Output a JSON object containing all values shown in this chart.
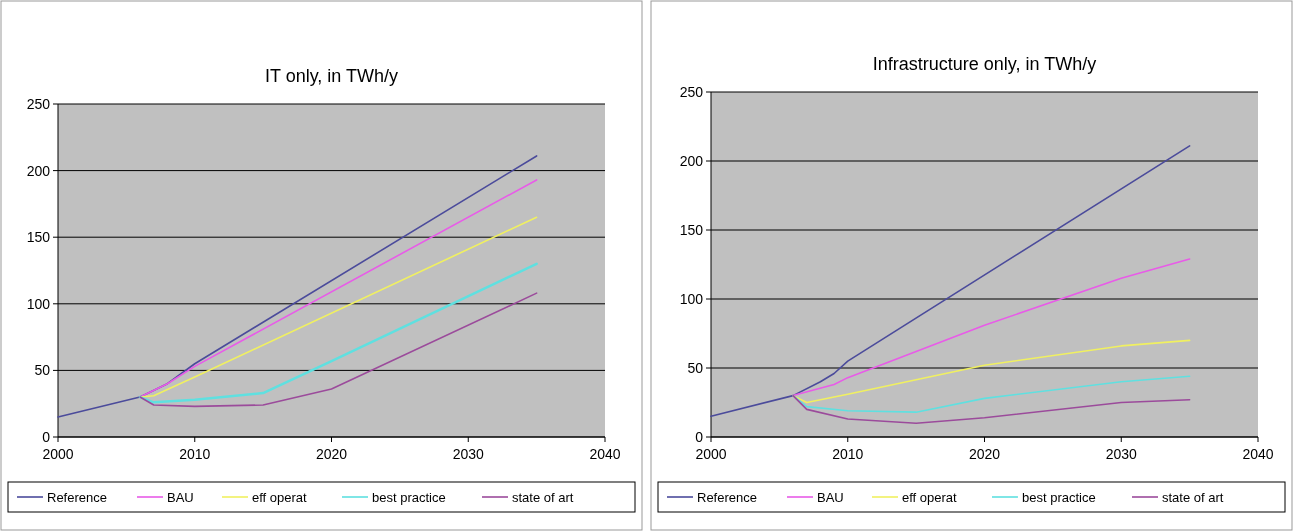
{
  "chart_data": [
    {
      "type": "line",
      "title": "IT only, in TWh/y",
      "xlim": [
        2000,
        2040
      ],
      "xticks": [
        2000,
        2010,
        2020,
        2030,
        2040
      ],
      "ylim": [
        0,
        250
      ],
      "yticks": [
        0,
        50,
        100,
        150,
        200,
        250
      ],
      "grid": "y",
      "legend": "bottom",
      "series": [
        {
          "name": "Reference",
          "color": "#4b4b9b",
          "x": [
            2000,
            2006,
            2008,
            2010,
            2035
          ],
          "values": [
            15,
            30,
            40,
            55,
            211
          ]
        },
        {
          "name": "BAU",
          "color": "#e85be8",
          "x": [
            2006,
            2008,
            2010,
            2035
          ],
          "values": [
            30,
            40,
            53,
            193
          ]
        },
        {
          "name": "eff operat",
          "color": "#f0f060",
          "x": [
            2006,
            2007,
            2010,
            2035
          ],
          "values": [
            30,
            31,
            45,
            165
          ]
        },
        {
          "name": "best practice",
          "color": "#5fe0e0",
          "x": [
            2006,
            2007,
            2010,
            2015,
            2020,
            2035
          ],
          "values": [
            30,
            26,
            28,
            33,
            57,
            130
          ]
        },
        {
          "name": "state of art",
          "color": "#9b4b9b",
          "x": [
            2006,
            2007,
            2010,
            2015,
            2020,
            2035
          ],
          "values": [
            30,
            24,
            23,
            24,
            36,
            108
          ]
        }
      ]
    },
    {
      "type": "line",
      "title": "Infrastructure only, in TWh/y",
      "xlim": [
        2000,
        2040
      ],
      "xticks": [
        2000,
        2010,
        2020,
        2030,
        2040
      ],
      "ylim": [
        0,
        250
      ],
      "yticks": [
        0,
        50,
        100,
        150,
        200,
        250
      ],
      "grid": "y",
      "legend": "bottom",
      "series": [
        {
          "name": "Reference",
          "color": "#4b4b9b",
          "x": [
            2000,
            2006,
            2008,
            2009,
            2010,
            2035
          ],
          "values": [
            15,
            30,
            40,
            46,
            55,
            211
          ]
        },
        {
          "name": "BAU",
          "color": "#e85be8",
          "x": [
            2006,
            2009,
            2010,
            2020,
            2030,
            2035
          ],
          "values": [
            30,
            38,
            43,
            81,
            115,
            129
          ]
        },
        {
          "name": "eff operat",
          "color": "#f0f060",
          "x": [
            2006,
            2007,
            2010,
            2020,
            2030,
            2035
          ],
          "values": [
            30,
            25,
            31,
            52,
            66,
            70
          ]
        },
        {
          "name": "best practice",
          "color": "#5fe0e0",
          "x": [
            2006,
            2007,
            2010,
            2015,
            2020,
            2030,
            2035
          ],
          "values": [
            30,
            22,
            19,
            18,
            28,
            40,
            44
          ]
        },
        {
          "name": "state of art",
          "color": "#9b4b9b",
          "x": [
            2006,
            2007,
            2010,
            2015,
            2020,
            2030,
            2035
          ],
          "values": [
            30,
            20,
            13,
            10,
            14,
            25,
            27
          ]
        }
      ]
    }
  ]
}
